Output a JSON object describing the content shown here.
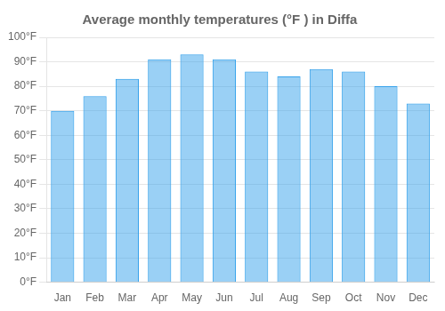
{
  "chart_data": {
    "type": "bar",
    "title": "Average monthly temperatures (°F ) in Diffa",
    "categories": [
      "Jan",
      "Feb",
      "Mar",
      "Apr",
      "May",
      "Jun",
      "Jul",
      "Aug",
      "Sep",
      "Oct",
      "Nov",
      "Dec"
    ],
    "values": [
      70,
      76,
      83,
      91,
      93,
      91,
      86,
      84,
      87,
      86,
      80,
      73
    ],
    "ylim": [
      0,
      100
    ],
    "yticks": [
      {
        "value": 0,
        "label": "0°F"
      },
      {
        "value": 10,
        "label": "10°F"
      },
      {
        "value": 20,
        "label": "20°F"
      },
      {
        "value": 30,
        "label": "30°F"
      },
      {
        "value": 40,
        "label": "40°F"
      },
      {
        "value": 50,
        "label": "50°F"
      },
      {
        "value": 60,
        "label": "60°F"
      },
      {
        "value": 70,
        "label": "70°F"
      },
      {
        "value": 80,
        "label": "80°F"
      },
      {
        "value": 90,
        "label": "90°F"
      },
      {
        "value": 100,
        "label": "100°F"
      }
    ],
    "grid": true
  }
}
